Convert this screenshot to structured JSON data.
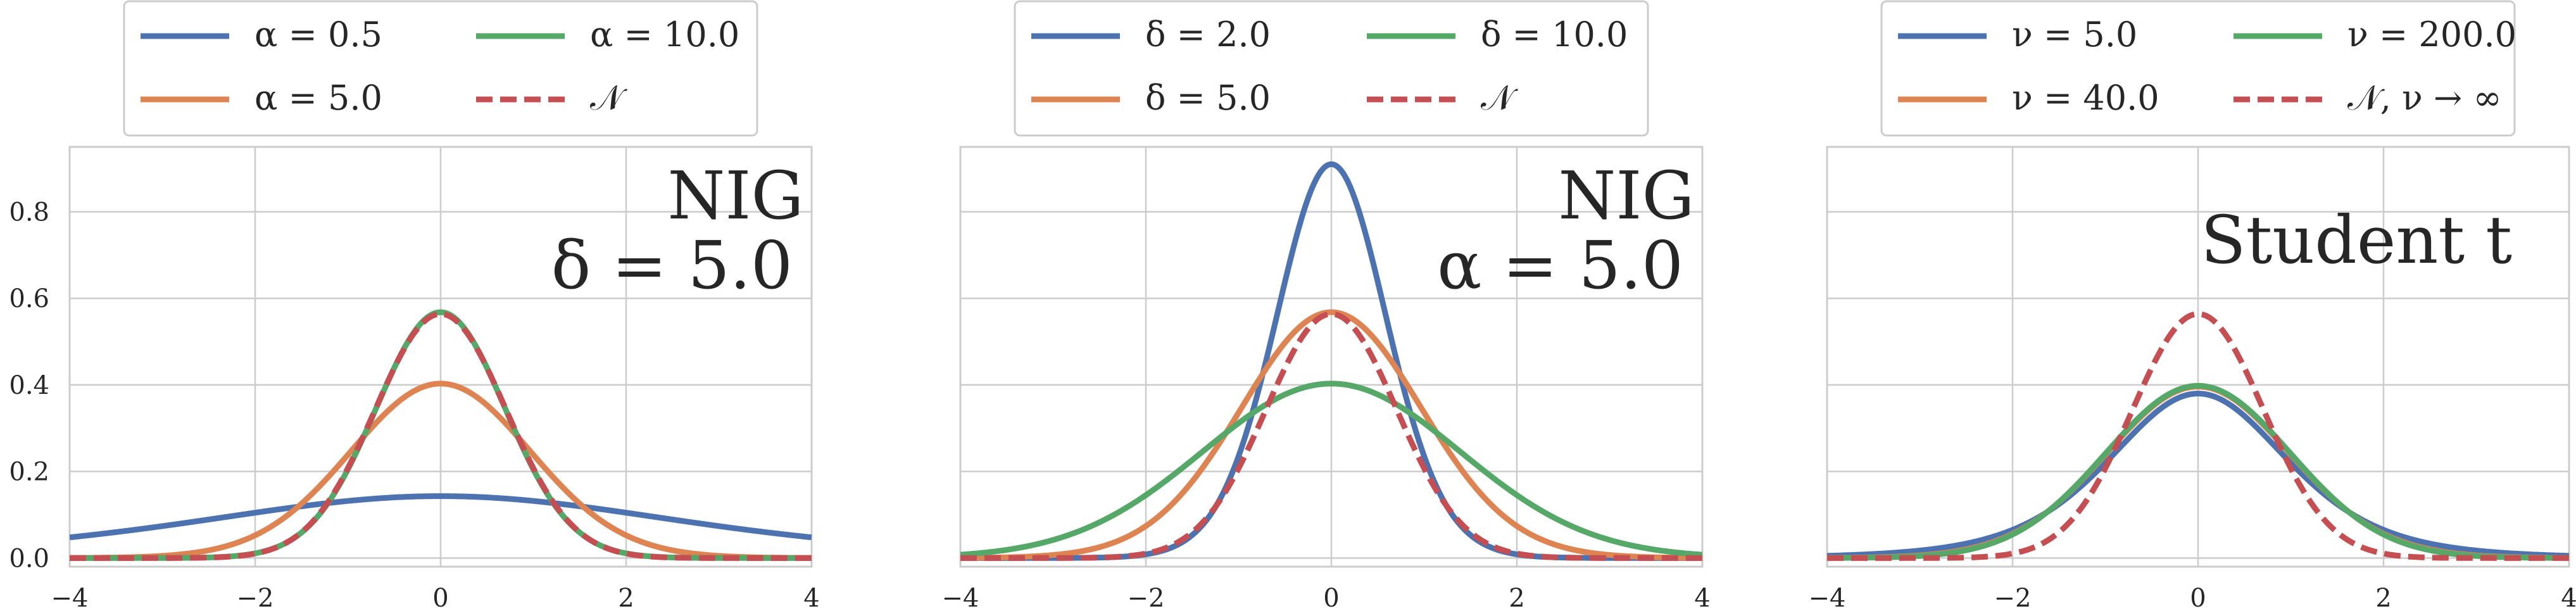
{
  "figure": {
    "colors": {
      "blue": "#4c72b0",
      "orange": "#dd8452",
      "green": "#55a868",
      "red": "#c44e52",
      "grid": "#cccccc",
      "frame": "#cccccc",
      "legend_border": "#cccccc",
      "text": "#262626"
    }
  },
  "chart_data": [
    {
      "type": "line",
      "title": "",
      "annotation": [
        "NIG",
        "δ = 5.0"
      ],
      "xlabel": "",
      "ylabel": "",
      "xlim": [
        -4,
        4
      ],
      "ylim": [
        -0.02,
        0.95
      ],
      "x_ticks": [
        -4,
        -2,
        0,
        2,
        4
      ],
      "x_tick_labels": [
        "−4",
        "−2",
        "0",
        "2",
        "4"
      ],
      "y_ticks": [
        0.0,
        0.2,
        0.4,
        0.6,
        0.8
      ],
      "y_tick_labels": [
        "0.0",
        "0.2",
        "0.4",
        "0.6",
        "0.8"
      ],
      "show_y_tick_labels": true,
      "grid": true,
      "legend_position": "top-center",
      "legend_columns": 2,
      "series": [
        {
          "name": "α = 0.5",
          "color": "#4c72b0",
          "dashed": false,
          "dist": "nig",
          "alpha": 0.5,
          "delta": 5.0,
          "peak": 0.143
        },
        {
          "name": "α = 5.0",
          "color": "#dd8452",
          "dashed": false,
          "dist": "nig",
          "alpha": 5.0,
          "delta": 5.0,
          "peak": 0.403
        },
        {
          "name": "α = 10.0",
          "color": "#55a868",
          "dashed": false,
          "dist": "nig",
          "alpha": 10.0,
          "delta": 5.0,
          "peak": 0.568
        },
        {
          "name": "𝒩",
          "color": "#c44e52",
          "dashed": true,
          "dist": "normal",
          "sigma": 0.7071,
          "peak": 0.564
        }
      ]
    },
    {
      "type": "line",
      "title": "",
      "annotation": [
        "NIG",
        "α = 5.0"
      ],
      "xlabel": "",
      "ylabel": "",
      "xlim": [
        -4,
        4
      ],
      "ylim": [
        -0.02,
        0.95
      ],
      "x_ticks": [
        -4,
        -2,
        0,
        2,
        4
      ],
      "x_tick_labels": [
        "−4",
        "−2",
        "0",
        "2",
        "4"
      ],
      "y_ticks": [
        0.0,
        0.2,
        0.4,
        0.6,
        0.8
      ],
      "y_tick_labels": [
        "0.0",
        "0.2",
        "0.4",
        "0.6",
        "0.8"
      ],
      "show_y_tick_labels": false,
      "grid": true,
      "legend_position": "top-center",
      "legend_columns": 2,
      "series": [
        {
          "name": "δ = 2.0",
          "color": "#4c72b0",
          "dashed": false,
          "dist": "nig",
          "alpha": 5.0,
          "delta": 2.0,
          "peak": 0.91
        },
        {
          "name": "δ = 5.0",
          "color": "#dd8452",
          "dashed": false,
          "dist": "nig",
          "alpha": 5.0,
          "delta": 5.0,
          "peak": 0.568
        },
        {
          "name": "δ = 10.0",
          "color": "#55a868",
          "dashed": false,
          "dist": "nig",
          "alpha": 5.0,
          "delta": 10.0,
          "peak": 0.403
        },
        {
          "name": "𝒩",
          "color": "#c44e52",
          "dashed": true,
          "dist": "normal",
          "sigma": 0.7071,
          "peak": 0.564
        }
      ]
    },
    {
      "type": "line",
      "title": "",
      "annotation": [
        "Student t"
      ],
      "xlabel": "",
      "ylabel": "",
      "xlim": [
        -4,
        4
      ],
      "ylim": [
        -0.02,
        0.95
      ],
      "x_ticks": [
        -4,
        -2,
        0,
        2,
        4
      ],
      "x_tick_labels": [
        "−4",
        "−2",
        "0",
        "2",
        "4"
      ],
      "y_ticks": [
        0.0,
        0.2,
        0.4,
        0.6,
        0.8
      ],
      "y_tick_labels": [
        "0.0",
        "0.2",
        "0.4",
        "0.6",
        "0.8"
      ],
      "show_y_tick_labels": false,
      "grid": true,
      "legend_position": "top-center",
      "legend_columns": 2,
      "series": [
        {
          "name": "ν = 5.0",
          "color": "#4c72b0",
          "dashed": false,
          "dist": "student_t",
          "nu": 5.0,
          "peak": 0.38
        },
        {
          "name": "ν = 40.0",
          "color": "#dd8452",
          "dashed": false,
          "dist": "student_t",
          "nu": 40.0,
          "peak": 0.396
        },
        {
          "name": "ν = 200.0",
          "color": "#55a868",
          "dashed": false,
          "dist": "student_t",
          "nu": 200.0,
          "peak": 0.398
        },
        {
          "name": "𝒩, ν → ∞",
          "color": "#c44e52",
          "dashed": true,
          "dist": "normal",
          "sigma": 0.7071,
          "peak": 0.564
        }
      ]
    }
  ]
}
